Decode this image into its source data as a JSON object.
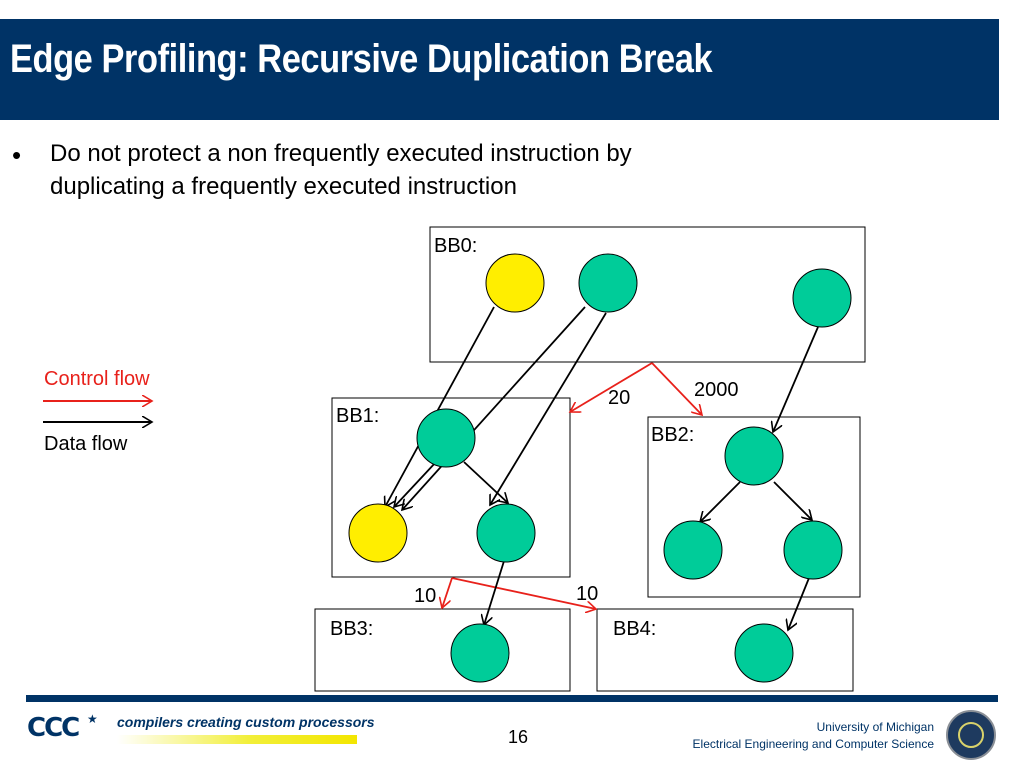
{
  "slide": {
    "title": "Edge Profiling: Recursive Duplication Break",
    "bullet_marker": "•",
    "bullet_lines": [
      "Do not protect a non frequently executed instruction by",
      "duplicating a frequently executed instruction"
    ]
  },
  "legend": {
    "control_flow": "Control flow",
    "data_flow": "Data flow",
    "control_color": "#e8211b",
    "data_color": "#000000"
  },
  "diagram": {
    "blocks": [
      {
        "id": "BB0",
        "label": "BB0:"
      },
      {
        "id": "BB1",
        "label": "BB1:"
      },
      {
        "id": "BB2",
        "label": "BB2:"
      },
      {
        "id": "BB3",
        "label": "BB3:"
      },
      {
        "id": "BB4",
        "label": "BB4:"
      }
    ],
    "edge_weights": [
      {
        "from": "BB0",
        "to": "BB1",
        "weight": "20"
      },
      {
        "from": "BB0",
        "to": "BB2",
        "weight": "2000"
      },
      {
        "from": "BB1",
        "to": "BB3",
        "weight": "10"
      },
      {
        "from": "BB1",
        "to": "BB4",
        "weight": "10"
      }
    ],
    "colors": {
      "frequent_node": "#00cc99",
      "infrequent_node": "#ffee00",
      "control_edge": "#e8211b",
      "data_edge": "#000000"
    }
  },
  "footer": {
    "logo_text": "CCC",
    "tagline": "compilers creating custom processors",
    "page_number": "16",
    "university": "University of Michigan",
    "department": "Electrical Engineering and Computer Science"
  }
}
